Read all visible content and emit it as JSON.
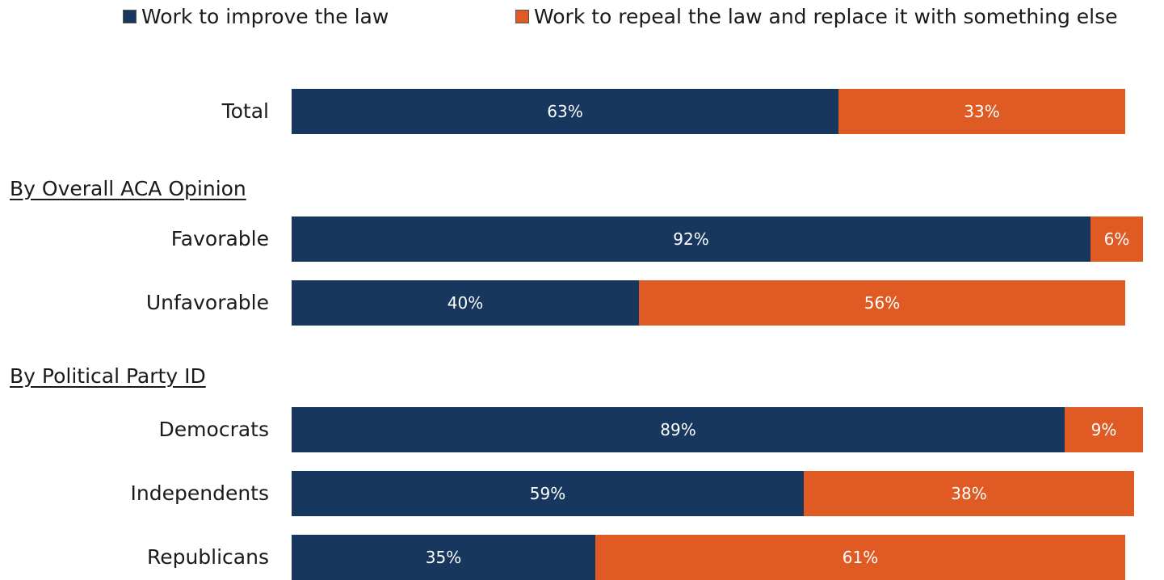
{
  "chart_data": {
    "type": "bar",
    "orientation": "horizontal",
    "stacked": true,
    "legend_position": "top",
    "grid": false,
    "value_unit": "%",
    "colors": {
      "improve": "#17375e",
      "repeal": "#e05a24"
    },
    "series": [
      {
        "name": "Work to improve the law"
      },
      {
        "name": "Work to repeal the law and replace it with something else"
      }
    ],
    "groups": [
      {
        "title": "",
        "rows": [
          {
            "category": "Total",
            "improve": 63,
            "repeal": 33,
            "improve_label": "63%",
            "repeal_label": "33%"
          }
        ]
      },
      {
        "title": "By Overall ACA Opinion",
        "rows": [
          {
            "category": "Favorable",
            "improve": 92,
            "repeal": 6,
            "improve_label": "92%",
            "repeal_label": "6%"
          },
          {
            "category": "Unfavorable",
            "improve": 40,
            "repeal": 56,
            "improve_label": "40%",
            "repeal_label": "56%"
          }
        ]
      },
      {
        "title": "By Political Party ID",
        "rows": [
          {
            "category": "Democrats",
            "improve": 89,
            "repeal": 9,
            "improve_label": "89%",
            "repeal_label": "9%"
          },
          {
            "category": "Independents",
            "improve": 59,
            "repeal": 38,
            "improve_label": "59%",
            "repeal_label": "38%"
          },
          {
            "category": "Republicans",
            "improve": 35,
            "repeal": 61,
            "improve_label": "35%",
            "repeal_label": "61%"
          }
        ]
      }
    ]
  }
}
